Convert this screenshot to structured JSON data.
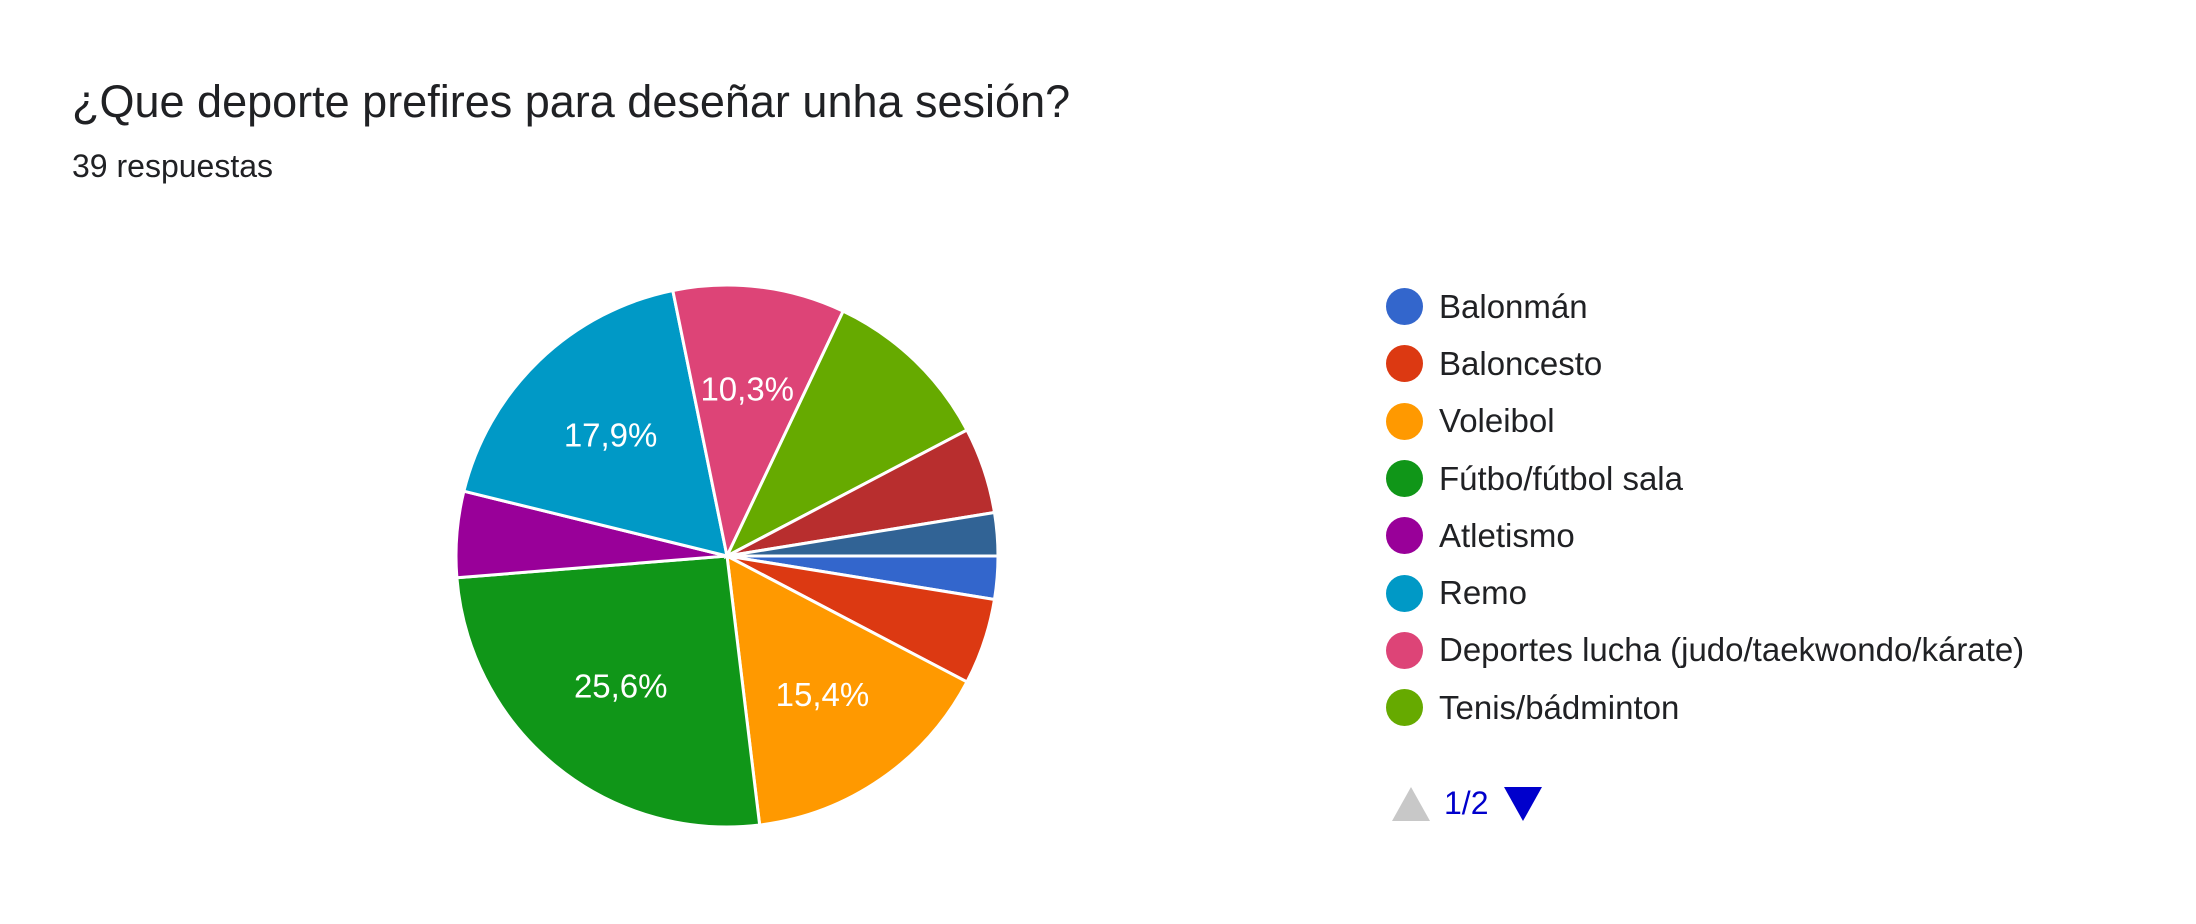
{
  "chart_data": {
    "type": "pie",
    "title": "¿Que deporte prefires para deseñar unha sesión?",
    "subtitle": "39 respuestas",
    "total_responses": 39,
    "slices": [
      {
        "label": "Balonmán",
        "count": 1,
        "color": "#3366cc",
        "pct_label": ""
      },
      {
        "label": "Baloncesto",
        "count": 2,
        "color": "#dc3912",
        "pct_label": ""
      },
      {
        "label": "Voleibol",
        "count": 6,
        "color": "#ff9900",
        "pct_label": "15,4%"
      },
      {
        "label": "Fútbo/fútbol sala",
        "count": 10,
        "color": "#109618",
        "pct_label": "25,6%"
      },
      {
        "label": "Atletismo",
        "count": 2,
        "color": "#990099",
        "pct_label": ""
      },
      {
        "label": "Remo",
        "count": 7,
        "color": "#0099c6",
        "pct_label": "17,9%"
      },
      {
        "label": "Deportes lucha (judo/taekwondo/kárate)",
        "count": 4,
        "color": "#dd4477",
        "pct_label": "10,3%"
      },
      {
        "label": "Tenis/bádminton",
        "count": 4,
        "color": "#66aa00",
        "pct_label": ""
      },
      {
        "label": "",
        "count": 2,
        "color": "#b82e2e",
        "pct_label": ""
      },
      {
        "label": "",
        "count": 1,
        "color": "#316395",
        "pct_label": ""
      }
    ],
    "legend_position": "right"
  },
  "legend": {
    "items": [
      {
        "label": "Balonmán",
        "color": "#3366cc"
      },
      {
        "label": "Baloncesto",
        "color": "#dc3912"
      },
      {
        "label": "Voleibol",
        "color": "#ff9900"
      },
      {
        "label": "Fútbo/fútbol sala",
        "color": "#109618"
      },
      {
        "label": "Atletismo",
        "color": "#990099"
      },
      {
        "label": "Remo",
        "color": "#0099c6"
      },
      {
        "label": "Deportes lucha (judo/taekwondo/kárate)",
        "color": "#dd4477"
      },
      {
        "label": "Tenis/bádminton",
        "color": "#66aa00"
      }
    ]
  },
  "pager": {
    "current": "1/2",
    "prev_icon": "triangle-up-icon",
    "next_icon": "triangle-down-icon"
  }
}
